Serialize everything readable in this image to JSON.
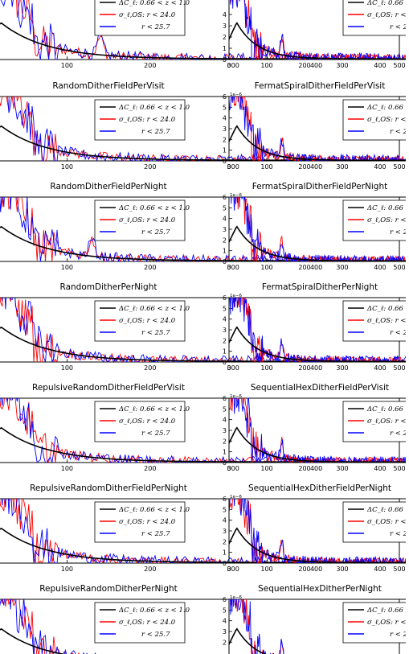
{
  "legend": [
    {
      "color": "#000000",
      "label": "ΔC_ℓ: 0.66 < z < 1.0"
    },
    {
      "color": "#ff0000",
      "label": "σ_ℓ,OS: r < 24.0"
    },
    {
      "color": "#0000ff",
      "label": "r < 25.7"
    }
  ],
  "chart_data": [
    {
      "type": "line",
      "title": "",
      "x_ticks": [
        "100",
        "200",
        "300",
        "400",
        "500"
      ],
      "y_ticks": [],
      "offset_label": "",
      "xlim": [
        0,
        500
      ]
    },
    {
      "type": "line",
      "title": "",
      "x_ticks": [
        "0",
        "100",
        "200",
        "300",
        "400"
      ],
      "y_ticks": [
        "0",
        "1",
        "2",
        "3",
        "4"
      ],
      "offset_label": "",
      "xlim": [
        0,
        500
      ],
      "ylim": [
        0,
        6
      ]
    },
    {
      "type": "line",
      "title": "RandomDitherFieldPerVisit",
      "x_ticks": [
        "100",
        "200",
        "300",
        "400",
        "500"
      ],
      "y_ticks": [],
      "offset_label": "",
      "xlim": [
        0,
        500
      ]
    },
    {
      "type": "line",
      "title": "FermatSpiralDitherFieldPerVisit",
      "x_ticks": [
        "0",
        "100",
        "200",
        "300",
        "400"
      ],
      "y_ticks": [
        "0",
        "1",
        "2",
        "3",
        "4",
        "5",
        "6"
      ],
      "offset_label": "1e−6",
      "xlim": [
        0,
        500
      ],
      "ylim": [
        0,
        6
      ]
    },
    {
      "type": "line",
      "title": "RandomDitherFieldPerNight",
      "x_ticks": [
        "100",
        "200",
        "300",
        "400",
        "500"
      ],
      "y_ticks": [],
      "offset_label": "",
      "xlim": [
        0,
        500
      ]
    },
    {
      "type": "line",
      "title": "FermatSpiralDitherFieldPerNight",
      "x_ticks": [
        "0",
        "100",
        "200",
        "300",
        "400"
      ],
      "y_ticks": [
        "0",
        "1",
        "2",
        "3",
        "4",
        "5",
        "6"
      ],
      "offset_label": "1e−6",
      "xlim": [
        0,
        500
      ],
      "ylim": [
        0,
        6
      ]
    },
    {
      "type": "line",
      "title": "RandomDitherPerNight",
      "x_ticks": [
        "100",
        "200",
        "300",
        "400",
        "500"
      ],
      "y_ticks": [],
      "offset_label": "",
      "xlim": [
        0,
        500
      ]
    },
    {
      "type": "line",
      "title": "FermatSpiralDitherPerNight",
      "x_ticks": [
        "0",
        "100",
        "200",
        "300",
        "400"
      ],
      "y_ticks": [
        "0",
        "1",
        "2",
        "3",
        "4",
        "5",
        "6"
      ],
      "offset_label": "1e−6",
      "xlim": [
        0,
        500
      ],
      "ylim": [
        0,
        6
      ]
    },
    {
      "type": "line",
      "title": "RepulsiveRandomDitherFieldPerVisit",
      "x_ticks": [
        "100",
        "200",
        "300",
        "400",
        "500"
      ],
      "y_ticks": [],
      "offset_label": "",
      "xlim": [
        0,
        500
      ]
    },
    {
      "type": "line",
      "title": "SequentialHexDitherFieldPerVisit",
      "x_ticks": [
        "0",
        "100",
        "200",
        "300",
        "400"
      ],
      "y_ticks": [
        "0",
        "1",
        "2",
        "3",
        "4",
        "5",
        "6"
      ],
      "offset_label": "1e−6",
      "xlim": [
        0,
        500
      ],
      "ylim": [
        0,
        6
      ]
    },
    {
      "type": "line",
      "title": "RepulsiveRandomDitherFieldPerNight",
      "x_ticks": [
        "100",
        "200",
        "300",
        "400",
        "500"
      ],
      "y_ticks": [],
      "offset_label": "",
      "xlim": [
        0,
        500
      ]
    },
    {
      "type": "line",
      "title": "SequentialHexDitherFieldPerNight",
      "x_ticks": [
        "0",
        "100",
        "200",
        "300",
        "400"
      ],
      "y_ticks": [
        "0",
        "1",
        "2",
        "3",
        "4",
        "5",
        "6"
      ],
      "offset_label": "1e−6",
      "xlim": [
        0,
        500
      ],
      "ylim": [
        0,
        6
      ]
    },
    {
      "type": "line",
      "title": "RepulsiveRandomDitherPerNight",
      "x_ticks": [],
      "y_ticks": [],
      "offset_label": "",
      "xlim": [
        0,
        500
      ]
    },
    {
      "type": "line",
      "title": "SequentialHexDitherPerNight",
      "x_ticks": [],
      "y_ticks": [
        "2",
        "3",
        "4",
        "5",
        "6"
      ],
      "offset_label": "1e−6",
      "xlim": [
        0,
        500
      ],
      "ylim": [
        0,
        6
      ]
    }
  ]
}
